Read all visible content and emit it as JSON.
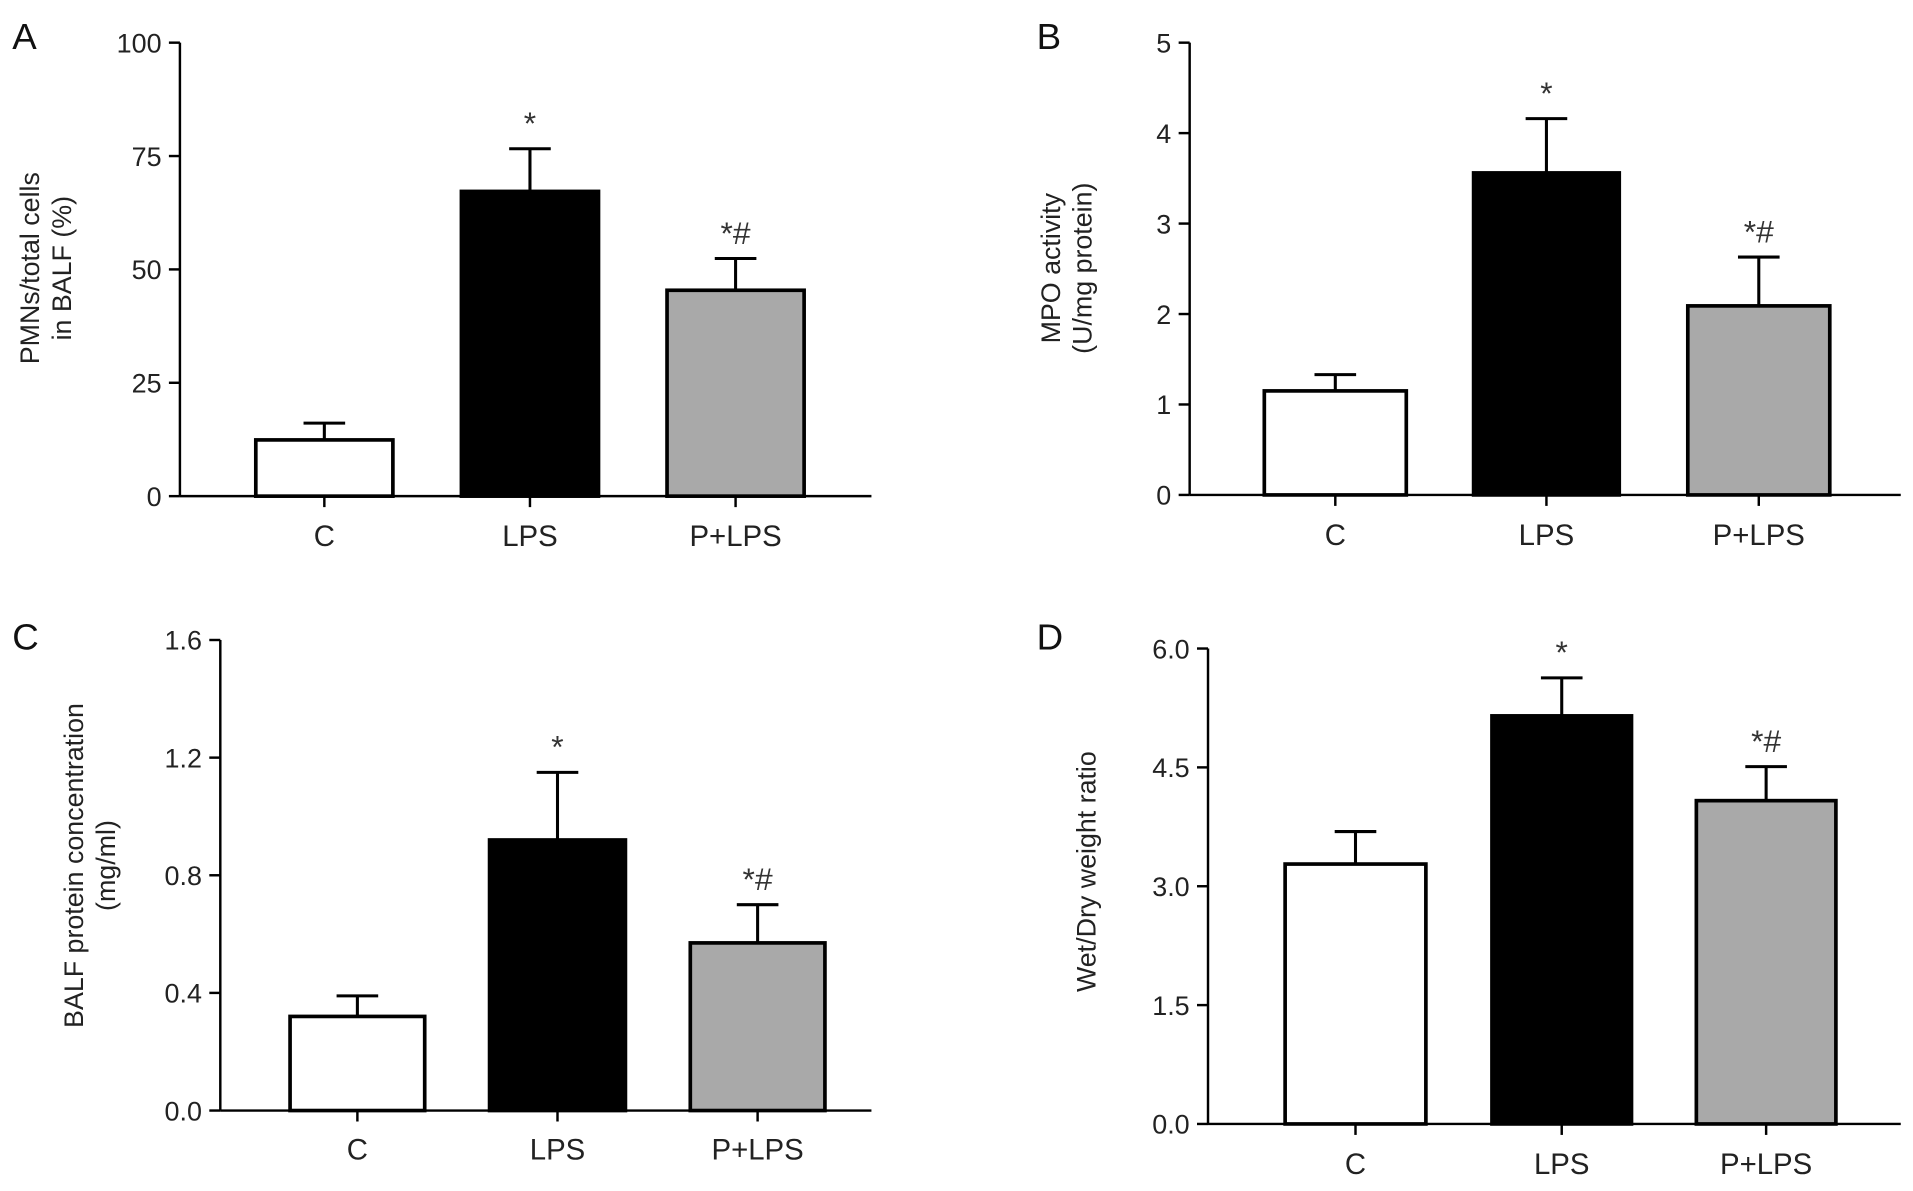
{
  "chart_data": [
    {
      "type": "bar",
      "panel": "A",
      "ylabel": [
        "PMNs/total cells",
        "in BALF (%)"
      ],
      "categories": [
        "C",
        "LPS",
        "P+LPS"
      ],
      "values": [
        12.4,
        67.2,
        45.4
      ],
      "errors": [
        16.1,
        76.6,
        52.4
      ],
      "significance": [
        "",
        "*",
        "*#"
      ],
      "ylim": [
        0,
        100
      ],
      "yticks": [
        "0",
        "25",
        "50",
        "75",
        "100"
      ],
      "colors": [
        "#ffffff",
        "#000000",
        "#a9a9a9"
      ]
    },
    {
      "type": "bar",
      "panel": "B",
      "ylabel": [
        "MPO activity",
        "(U/mg protein)"
      ],
      "categories": [
        "C",
        "LPS",
        "P+LPS"
      ],
      "values": [
        1.15,
        3.56,
        2.09
      ],
      "errors": [
        1.33,
        4.16,
        2.63
      ],
      "significance": [
        "",
        "*",
        "*#"
      ],
      "ylim": [
        0,
        5
      ],
      "yticks": [
        "0",
        "1",
        "2",
        "3",
        "4",
        "5"
      ],
      "colors": [
        "#ffffff",
        "#000000",
        "#a9a9a9"
      ]
    },
    {
      "type": "bar",
      "panel": "C",
      "ylabel": [
        "BALF protein concentration",
        "(mg/ml)"
      ],
      "categories": [
        "C",
        "LPS",
        "P+LPS"
      ],
      "values": [
        0.32,
        0.92,
        0.57
      ],
      "errors": [
        0.39,
        1.15,
        0.7
      ],
      "significance": [
        "",
        "*",
        "*#"
      ],
      "ylim": [
        0,
        1.6
      ],
      "yticks": [
        "0.0",
        "0.4",
        "0.8",
        "1.2",
        "1.6"
      ],
      "colors": [
        "#ffffff",
        "#000000",
        "#a9a9a9"
      ]
    },
    {
      "type": "bar",
      "panel": "D",
      "ylabel": [
        "Wet/Dry weight ratio"
      ],
      "categories": [
        "C",
        "LPS",
        "P+LPS"
      ],
      "values": [
        3.28,
        5.15,
        4.08
      ],
      "errors": [
        3.69,
        5.63,
        4.51
      ],
      "significance": [
        "",
        "*",
        "*#"
      ],
      "ylim": [
        0,
        6
      ],
      "yticks": [
        "0.0",
        "1.5",
        "3.0",
        "4.5",
        "6.0"
      ],
      "colors": [
        "#ffffff",
        "#000000",
        "#a9a9a9"
      ]
    }
  ]
}
